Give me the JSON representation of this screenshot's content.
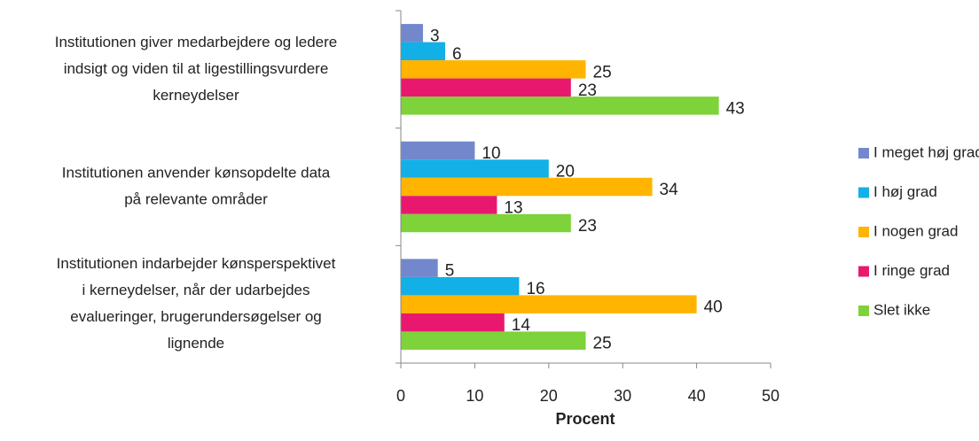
{
  "chart_data": {
    "type": "hbar",
    "categories": [
      [
        "Institutionen giver medarbejdere og ledere",
        "indsigt og viden til at ligestillingsvurdere",
        "kerneydelser"
      ],
      [
        "Institutionen anvender kønsopdelte data",
        "på relevante områder"
      ],
      [
        "Institutionen indarbejder kønsperspektivet",
        "i kerneydelser, når der udarbejdes",
        "evalueringer, brugerundersøgelser og",
        "lignende"
      ]
    ],
    "series": [
      {
        "name": "I meget høj grad",
        "color": "#7388cc",
        "values": [
          3,
          10,
          5
        ]
      },
      {
        "name": "I høj grad",
        "color": "#12b0e6",
        "values": [
          6,
          20,
          16
        ]
      },
      {
        "name": "I nogen grad",
        "color": "#ffb400",
        "values": [
          25,
          34,
          40
        ]
      },
      {
        "name": "I ringe grad",
        "color": "#e8186f",
        "values": [
          23,
          13,
          14
        ]
      },
      {
        "name": "Slet ikke",
        "color": "#7ed23a",
        "values": [
          43,
          23,
          25
        ]
      }
    ],
    "xlabel": "Procent",
    "xlim": [
      0,
      50
    ],
    "xticks": [
      0,
      10,
      20,
      30,
      40,
      50
    ],
    "legend": "right",
    "grid": false
  }
}
